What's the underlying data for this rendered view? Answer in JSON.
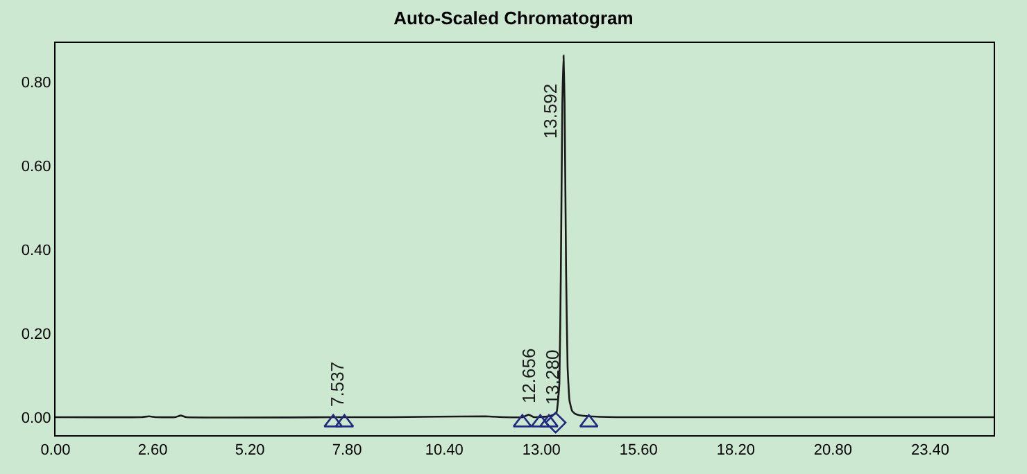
{
  "chart_data": {
    "type": "line",
    "title": "Auto-Scaled Chromatogram",
    "xlim": [
      0,
      25.1
    ],
    "xticks": [
      {
        "value": 0,
        "label": "0.00"
      },
      {
        "value": 2.6,
        "label": "2.60"
      },
      {
        "value": 5.2,
        "label": "5.20"
      },
      {
        "value": 7.8,
        "label": "7.80"
      },
      {
        "value": 10.4,
        "label": "10.40"
      },
      {
        "value": 13,
        "label": "13.00"
      },
      {
        "value": 15.6,
        "label": "15.60"
      },
      {
        "value": 18.2,
        "label": "18.20"
      },
      {
        "value": 20.8,
        "label": "20.80"
      },
      {
        "value": 23.4,
        "label": "23.40"
      }
    ],
    "ylim": [
      -0.043,
      0.893
    ],
    "yticks": [
      {
        "value": 0,
        "label": "0.00"
      },
      {
        "value": 0.2,
        "label": "0.20"
      },
      {
        "value": 0.4,
        "label": "0.40"
      },
      {
        "value": 0.6,
        "label": "0.60"
      },
      {
        "value": 0.8,
        "label": "0.80"
      }
    ],
    "grid": false,
    "series": [
      {
        "color": "#1a1a1a",
        "marker": "none",
        "line_style": "solid",
        "x": [
          0,
          2.3,
          2.5,
          2.7,
          3.2,
          3.35,
          3.5,
          7.5,
          9,
          11.5,
          12.0,
          12.5,
          12.656,
          12.8,
          13.2,
          13.4,
          13.48,
          13.52,
          13.56,
          13.592,
          13.62,
          13.66,
          13.7,
          13.75,
          13.82,
          13.9,
          14.0,
          14.3,
          15,
          25.1
        ],
        "values": [
          0,
          0,
          0.002,
          0,
          0,
          0.004,
          0,
          0,
          0,
          0.002,
          0,
          0,
          0.006,
          0,
          0.002,
          0.01,
          0.08,
          0.35,
          0.75,
          0.863,
          0.75,
          0.35,
          0.12,
          0.04,
          0.015,
          0.008,
          0.005,
          0.002,
          0,
          0
        ]
      },
      {
        "type": "scatter",
        "color": "#1f2a80",
        "marker": "triangle",
        "x": [
          7.43,
          7.73,
          12.49,
          12.97,
          13.2,
          14.27
        ],
        "values": [
          -0.013,
          -0.013,
          -0.013,
          -0.013,
          -0.013,
          -0.013
        ]
      },
      {
        "type": "scatter",
        "color": "#1f2a80",
        "marker": "diamond",
        "x": [
          13.38
        ],
        "values": [
          -0.013
        ]
      }
    ],
    "annotations": [
      {
        "text": "7.537",
        "x": 7.537,
        "y": 0.0
      },
      {
        "text": "12.656",
        "x": 12.656,
        "y": 0.006
      },
      {
        "text": "13.280",
        "x": 13.28,
        "y": 0.002
      },
      {
        "text": "13.592",
        "x": 13.592,
        "y": 0.863
      }
    ]
  }
}
